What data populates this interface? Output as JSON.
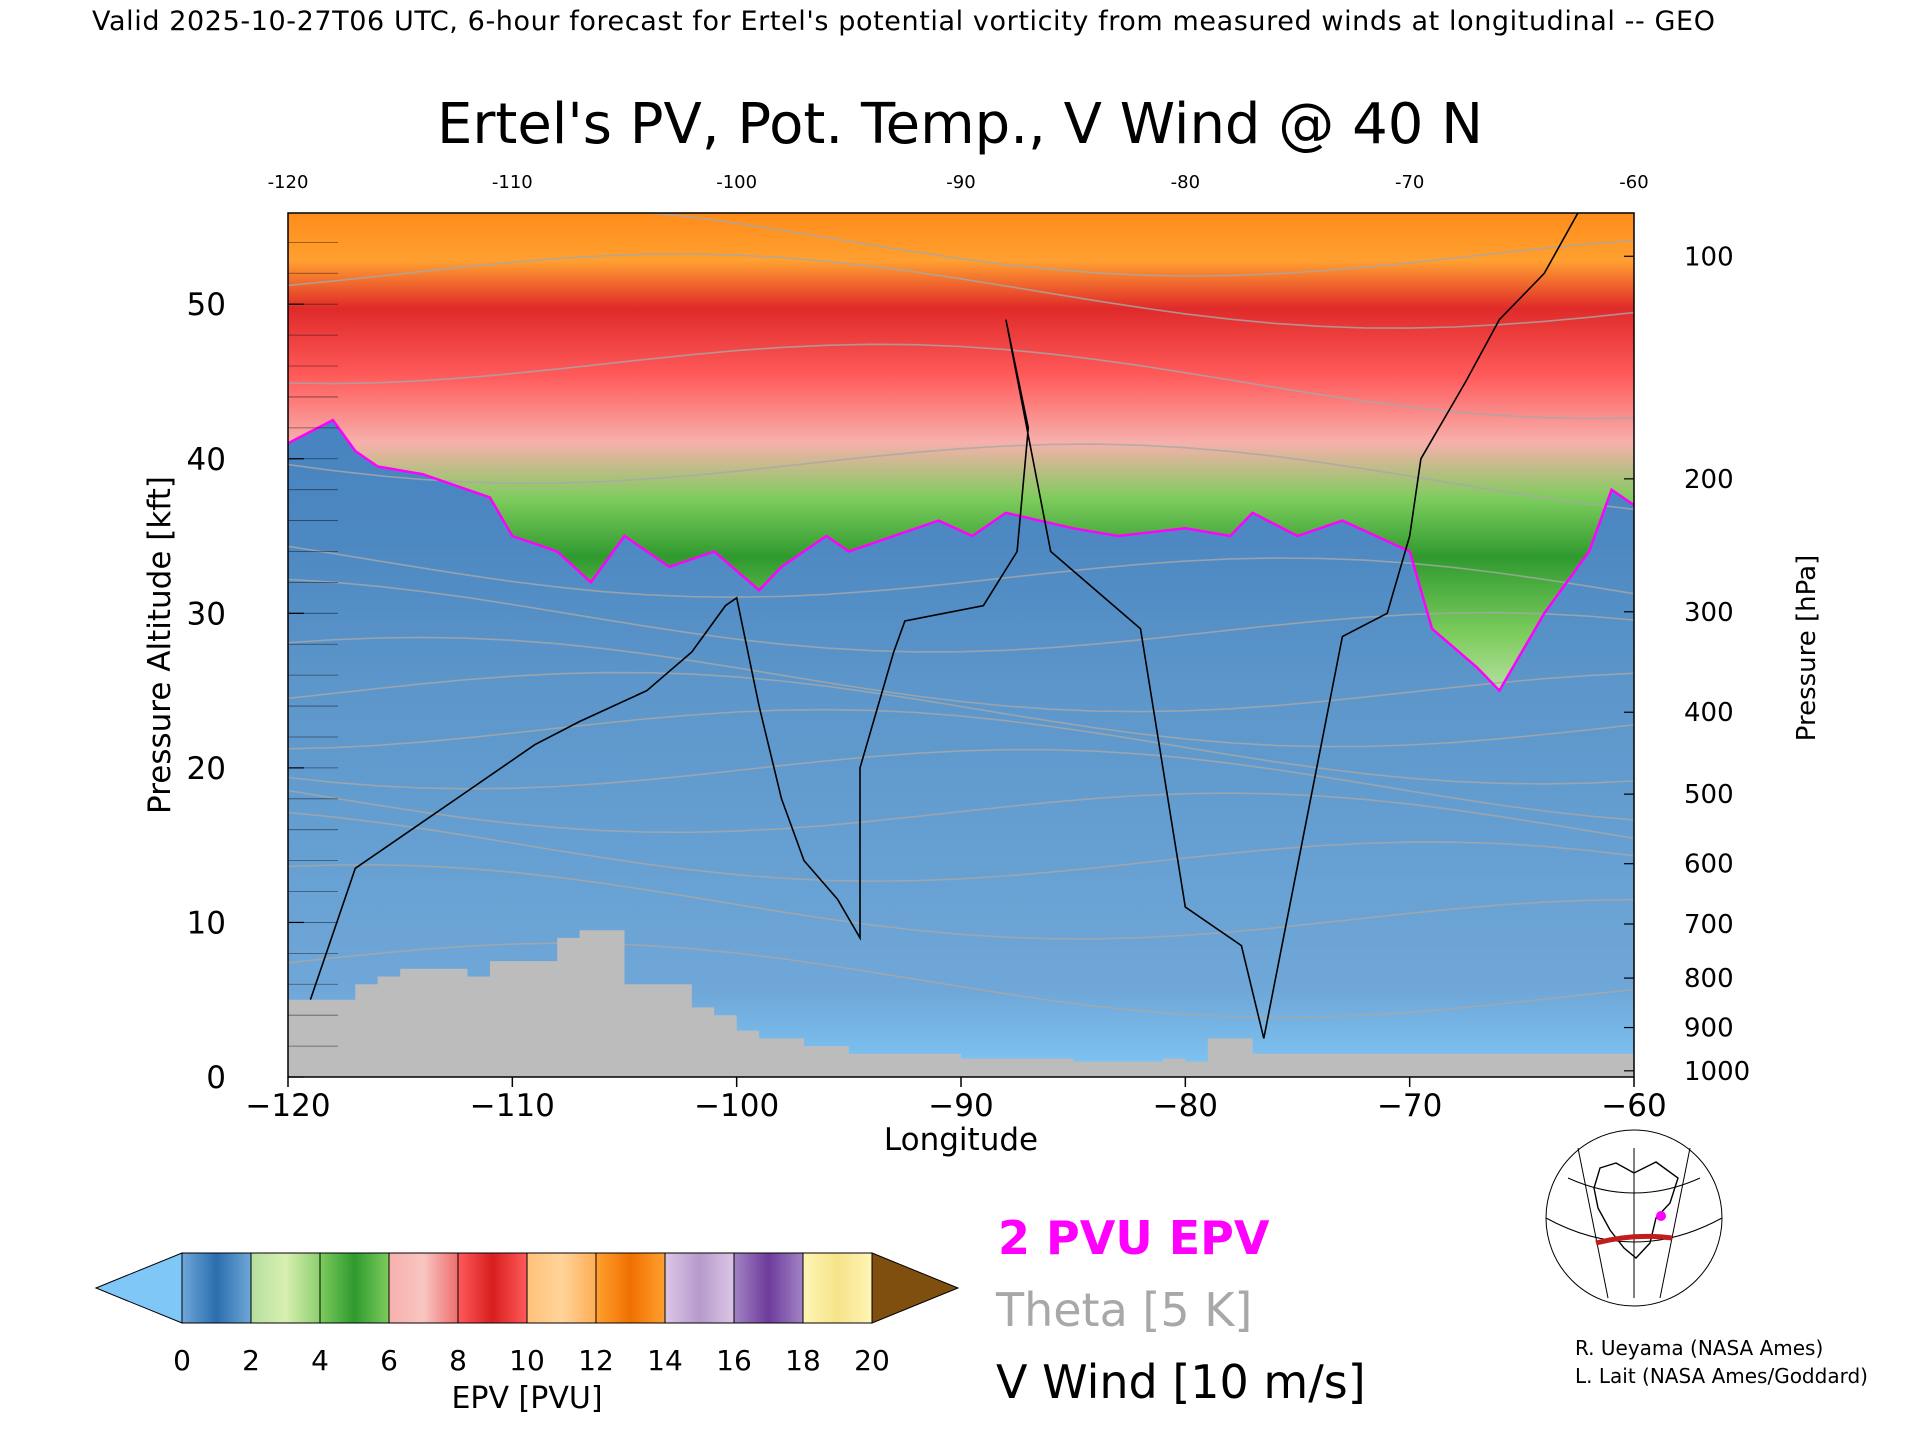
{
  "header": {
    "valid_line": "Valid 2025-10-27T06 UTC, 6-hour forecast for Ertel's potential vorticity from measured winds at longitudinal -- GEO"
  },
  "chart_data": {
    "type": "heatmap",
    "title": "Ertel's PV, Pot. Temp., V Wind @ 40 N",
    "xlabel": "Longitude",
    "ylabel_left": "Pressure Altitude [kft]",
    "ylabel_right": "Pressure [hPa]",
    "xlim": [
      -120,
      -60
    ],
    "ylim": [
      0,
      55.9
    ],
    "x_ticks": [
      -120,
      -110,
      -100,
      -90,
      -80,
      -70,
      -60
    ],
    "x_tick_labels": [
      "−120",
      "−110",
      "−100",
      "−90",
      "−80",
      "−70",
      "−60"
    ],
    "top_tick_labels": [
      "-120",
      "-110",
      "-100",
      "-90",
      "-80",
      "-70",
      "-60"
    ],
    "y_ticks_left": [
      0,
      10,
      20,
      30,
      40,
      50
    ],
    "y_ticks_right": [
      {
        "label": "100",
        "kft": 53.1
      },
      {
        "label": "200",
        "kft": 38.7
      },
      {
        "label": "300",
        "kft": 30.1
      },
      {
        "label": "400",
        "kft": 23.6
      },
      {
        "label": "500",
        "kft": 18.3
      },
      {
        "label": "600",
        "kft": 13.8
      },
      {
        "label": "700",
        "kft": 9.9
      },
      {
        "label": "800",
        "kft": 6.4
      },
      {
        "label": "900",
        "kft": 3.2
      },
      {
        "label": "1000",
        "kft": 0.4
      }
    ],
    "dynamic_tropopause_2pvu": {
      "lon": [
        -120,
        -118,
        -117,
        -116,
        -114,
        -112,
        -111,
        -110,
        -108,
        -106.5,
        -105,
        -103,
        -101,
        -99,
        -98,
        -96,
        -95,
        -93,
        -91,
        -89.5,
        -88,
        -85,
        -83,
        -80,
        -78,
        -77,
        -75,
        -73,
        -70,
        -69,
        -67,
        -66,
        -64,
        -62,
        -61,
        -60
      ],
      "kft": [
        41,
        42.5,
        40.5,
        39.5,
        39,
        38,
        37.5,
        35,
        34,
        32,
        35,
        33,
        34,
        31.5,
        33,
        35,
        34,
        35,
        36,
        35,
        36.5,
        35.5,
        35,
        35.5,
        35,
        36.5,
        35,
        36,
        34,
        29,
        26.5,
        25,
        30,
        34,
        38,
        37
      ]
    },
    "surface_terrain": {
      "lon": [
        -120,
        -119,
        -118,
        -117,
        -116,
        -115,
        -114,
        -113,
        -112,
        -111,
        -110,
        -109,
        -108,
        -107,
        -106,
        -105,
        -104,
        -103,
        -102,
        -101,
        -100,
        -99,
        -98,
        -97,
        -96,
        -95,
        -90,
        -85,
        -82,
        -81,
        -80,
        -79,
        -78,
        -77,
        -60
      ],
      "kft": [
        5,
        5,
        5,
        6,
        6.5,
        7,
        7,
        7,
        6.5,
        7.5,
        7.5,
        7.5,
        9,
        9.5,
        9.5,
        6,
        6,
        6,
        4.5,
        4,
        3,
        2.5,
        2.5,
        2,
        2,
        1.5,
        1.2,
        1,
        1,
        1.2,
        1,
        2.5,
        2.5,
        1.5,
        0
      ]
    },
    "v_wind_zero_contour": {
      "lon": [
        -119,
        -117,
        -112,
        -109,
        -107,
        -104,
        -102,
        -100.5,
        -100,
        -99,
        -98,
        -97,
        -95.5,
        -94.5,
        -94.5,
        -93,
        -92.5,
        -89,
        -87.5,
        -87,
        -88,
        -86,
        -84,
        -82,
        -80,
        -77.5,
        -76.5,
        -73,
        -71,
        -70,
        -69.5,
        -67.5,
        -66,
        -64,
        -62.5
      ],
      "kft": [
        5,
        13.5,
        18.5,
        21.5,
        23,
        25,
        27.5,
        30.5,
        31,
        24,
        18,
        14,
        11.5,
        9,
        20,
        27.5,
        29.5,
        30.5,
        34,
        42,
        49,
        34,
        31.5,
        29,
        11,
        8.5,
        2.5,
        28.5,
        30,
        35,
        40,
        45,
        49,
        52,
        55.9
      ]
    },
    "levels_theta": [
      290,
      300,
      310,
      320,
      330,
      340,
      350,
      360,
      380,
      400,
      450,
      500,
      550,
      600
    ],
    "colorbar": {
      "label": "EPV [PVU]",
      "ticks": [
        "0",
        "2",
        "4",
        "6",
        "8",
        "10",
        "12",
        "14",
        "16",
        "18",
        "20"
      ],
      "colors": [
        [
          "#6fa7d8",
          "#2b6eae",
          "#6fa7d8"
        ],
        [
          "#b6dfa0",
          "#d8f0b0",
          "#8ccf70"
        ],
        [
          "#7ccc5c",
          "#2f9a2f",
          "#7ccc5c"
        ],
        [
          "#f7b0ac",
          "#f8c6c2",
          "#ee6e6e"
        ],
        [
          "#ff5a5a",
          "#d91e1e",
          "#ff5a5a"
        ],
        [
          "#ffc27a",
          "#ffd39a",
          "#ffae55"
        ],
        [
          "#ffa030",
          "#f07000",
          "#ffa030"
        ],
        [
          "#dcc6e6",
          "#b69acb",
          "#dcc6e6"
        ],
        [
          "#a283c4",
          "#6e3c9c",
          "#a283c4"
        ],
        [
          "#fff5b5",
          "#f5e48a",
          "#fff5b5"
        ]
      ],
      "under_color": "#7fc7f7",
      "over_color": "#7f4f10"
    }
  },
  "legend": {
    "epv_line": "2 PVU EPV",
    "theta": "Theta [5 K]",
    "vwind": "V Wind [10 m/s]",
    "epv_color": "#ff00ff",
    "theta_color": "#a8a8a8",
    "vwind_color": "#000000"
  },
  "credits": {
    "line1": "R. Ueyama (NASA Ames)",
    "line2": "L. Lait (NASA Ames/Goddard)"
  },
  "inset_map": {
    "icon": "north-america-locator-map-icon"
  }
}
